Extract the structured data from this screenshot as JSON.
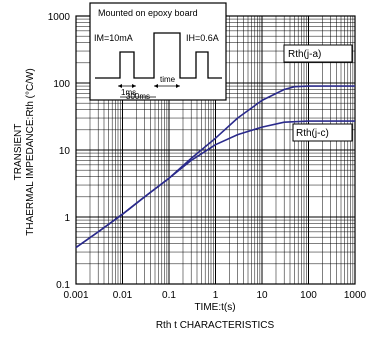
{
  "chart_data": {
    "type": "line",
    "title": "",
    "caption": "Rth t CHARACTERISTICS",
    "xlabel": "TIME:t(s)",
    "ylabel": [
      "TRANSIENT",
      "THAERMAL IMPEDANCE:Rth (°C/W)"
    ],
    "xscale": "log",
    "yscale": "log",
    "xlim": [
      0.001,
      1000
    ],
    "ylim": [
      0.1,
      1000
    ],
    "x_ticks": [
      "0.001",
      "0.01",
      "0.1",
      "1",
      "10",
      "100",
      "1000"
    ],
    "y_ticks": [
      "0.1",
      "1",
      "10",
      "100",
      "1000"
    ],
    "grid": true,
    "line_color": "#2b2b8c",
    "series": [
      {
        "name": "Rth(j-a)",
        "x": [
          0.001,
          0.003,
          0.01,
          0.03,
          0.1,
          0.3,
          1,
          3,
          10,
          30,
          50,
          100,
          1000
        ],
        "y": [
          0.35,
          0.6,
          1.1,
          2.0,
          3.8,
          7.5,
          15,
          30,
          55,
          80,
          88,
          90,
          90
        ]
      },
      {
        "name": "Rth(j-c)",
        "x": [
          0.001,
          0.003,
          0.01,
          0.03,
          0.1,
          0.3,
          1,
          3,
          10,
          30,
          100,
          1000
        ],
        "y": [
          0.35,
          0.6,
          1.1,
          2.0,
          3.8,
          7.0,
          12,
          17,
          22,
          26,
          27,
          27
        ]
      }
    ],
    "annotations": {
      "inset_title": "Mounted on epoxy board",
      "im_label": "IM=10mA",
      "ih_label": "IH=0.6A",
      "t1_label": "1ms",
      "time_label": "time",
      "period_label": "300ms"
    }
  }
}
